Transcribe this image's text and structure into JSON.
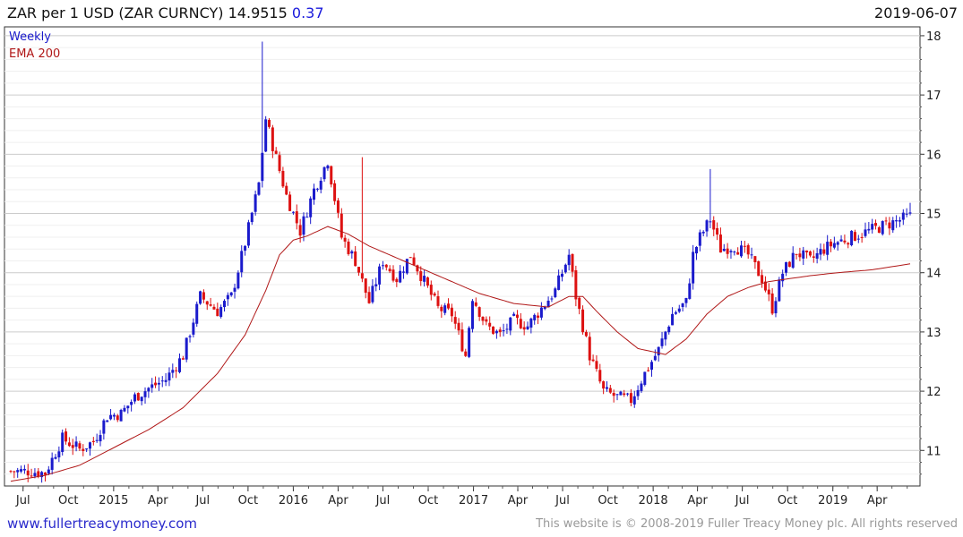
{
  "header": {
    "title": "ZAR per 1 USD (ZAR CURNCY) 14.9515",
    "change": "0.37",
    "date": "2019-06-07"
  },
  "footer": {
    "left": "www.fullertreacymoney.com",
    "right": "This website is © 2008-2019 Fuller Treacy Money plc. All rights reserved"
  },
  "chart_data": {
    "type": "candlestick",
    "frequency": "Weekly",
    "overlay": "EMA 200",
    "legend": [
      "Weekly",
      "EMA 200"
    ],
    "legend_position": "top-left",
    "colors": {
      "up": "#1a1acc",
      "down": "#dd1111",
      "ema": "#b01818",
      "grid": "#d9d9d9"
    },
    "ylim": [
      10.4,
      18.15
    ],
    "y_ticks": [
      11,
      12,
      13,
      14,
      15,
      16,
      17,
      18
    ],
    "x_tick_labels": [
      "Jul",
      "Oct",
      "2015",
      "Apr",
      "Jul",
      "Oct",
      "2016",
      "Apr",
      "Jul",
      "Oct",
      "2017",
      "Apr",
      "Jul",
      "Oct",
      "2018",
      "Apr",
      "Jul",
      "Oct",
      "2019",
      "Apr"
    ],
    "start_week": "2014-06-06",
    "end_week": "2019-06-07",
    "close_points": [
      {
        "w": 0,
        "v": 10.65
      },
      {
        "w": 5,
        "v": 10.65
      },
      {
        "w": 10,
        "v": 10.62
      },
      {
        "w": 15,
        "v": 11.2
      },
      {
        "w": 20,
        "v": 11.02
      },
      {
        "w": 24,
        "v": 11.15
      },
      {
        "w": 28,
        "v": 11.58
      },
      {
        "w": 32,
        "v": 11.62
      },
      {
        "w": 36,
        "v": 11.9
      },
      {
        "w": 40,
        "v": 12.05
      },
      {
        "w": 45,
        "v": 12.2
      },
      {
        "w": 50,
        "v": 12.6
      },
      {
        "w": 55,
        "v": 13.6
      },
      {
        "w": 60,
        "v": 13.35
      },
      {
        "w": 64,
        "v": 13.6
      },
      {
        "w": 68,
        "v": 14.5
      },
      {
        "w": 72,
        "v": 15.5
      },
      {
        "w": 74,
        "v": 16.6
      },
      {
        "w": 76,
        "v": 16.15
      },
      {
        "w": 80,
        "v": 15.3
      },
      {
        "w": 84,
        "v": 14.7
      },
      {
        "w": 88,
        "v": 15.4
      },
      {
        "w": 92,
        "v": 15.9
      },
      {
        "w": 96,
        "v": 14.6
      },
      {
        "w": 100,
        "v": 14.2
      },
      {
        "w": 104,
        "v": 13.5
      },
      {
        "w": 108,
        "v": 14.2
      },
      {
        "w": 112,
        "v": 13.9
      },
      {
        "w": 116,
        "v": 14.3
      },
      {
        "w": 120,
        "v": 13.85
      },
      {
        "w": 124,
        "v": 13.4
      },
      {
        "w": 128,
        "v": 13.3
      },
      {
        "w": 132,
        "v": 12.6
      },
      {
        "w": 134,
        "v": 13.6
      },
      {
        "w": 138,
        "v": 13.1
      },
      {
        "w": 142,
        "v": 12.95
      },
      {
        "w": 146,
        "v": 13.2
      },
      {
        "w": 150,
        "v": 13.1
      },
      {
        "w": 154,
        "v": 13.4
      },
      {
        "w": 158,
        "v": 13.7
      },
      {
        "w": 162,
        "v": 14.3
      },
      {
        "w": 164,
        "v": 13.6
      },
      {
        "w": 168,
        "v": 12.6
      },
      {
        "w": 172,
        "v": 12.0
      },
      {
        "w": 176,
        "v": 11.9
      },
      {
        "w": 180,
        "v": 11.85
      },
      {
        "w": 184,
        "v": 12.3
      },
      {
        "w": 188,
        "v": 12.7
      },
      {
        "w": 192,
        "v": 13.3
      },
      {
        "w": 196,
        "v": 13.5
      },
      {
        "w": 198,
        "v": 14.3
      },
      {
        "w": 200,
        "v": 14.6
      },
      {
        "w": 203,
        "v": 14.9
      },
      {
        "w": 206,
        "v": 14.4
      },
      {
        "w": 210,
        "v": 14.45
      },
      {
        "w": 214,
        "v": 14.3
      },
      {
        "w": 218,
        "v": 13.9
      },
      {
        "w": 221,
        "v": 13.4
      },
      {
        "w": 224,
        "v": 14.0
      },
      {
        "w": 228,
        "v": 14.35
      },
      {
        "w": 232,
        "v": 14.2
      },
      {
        "w": 236,
        "v": 14.4
      },
      {
        "w": 239,
        "v": 14.5
      },
      {
        "w": 261,
        "v": 14.9515
      }
    ],
    "ema_points": [
      {
        "w": 0,
        "v": 10.48
      },
      {
        "w": 10,
        "v": 10.58
      },
      {
        "w": 20,
        "v": 10.75
      },
      {
        "w": 30,
        "v": 11.05
      },
      {
        "w": 40,
        "v": 11.35
      },
      {
        "w": 50,
        "v": 11.72
      },
      {
        "w": 60,
        "v": 12.3
      },
      {
        "w": 68,
        "v": 12.95
      },
      {
        "w": 74,
        "v": 13.7
      },
      {
        "w": 78,
        "v": 14.3
      },
      {
        "w": 82,
        "v": 14.55
      },
      {
        "w": 86,
        "v": 14.62
      },
      {
        "w": 92,
        "v": 14.78
      },
      {
        "w": 98,
        "v": 14.65
      },
      {
        "w": 104,
        "v": 14.45
      },
      {
        "w": 112,
        "v": 14.25
      },
      {
        "w": 118,
        "v": 14.1
      },
      {
        "w": 124,
        "v": 13.95
      },
      {
        "w": 130,
        "v": 13.8
      },
      {
        "w": 136,
        "v": 13.65
      },
      {
        "w": 146,
        "v": 13.48
      },
      {
        "w": 156,
        "v": 13.42
      },
      {
        "w": 162,
        "v": 13.6
      },
      {
        "w": 166,
        "v": 13.6
      },
      {
        "w": 170,
        "v": 13.35
      },
      {
        "w": 176,
        "v": 13.0
      },
      {
        "w": 182,
        "v": 12.72
      },
      {
        "w": 190,
        "v": 12.62
      },
      {
        "w": 196,
        "v": 12.88
      },
      {
        "w": 202,
        "v": 13.3
      },
      {
        "w": 208,
        "v": 13.6
      },
      {
        "w": 214,
        "v": 13.75
      },
      {
        "w": 220,
        "v": 13.85
      },
      {
        "w": 226,
        "v": 13.9
      },
      {
        "w": 232,
        "v": 13.95
      },
      {
        "w": 240,
        "v": 14.0
      },
      {
        "w": 250,
        "v": 14.05
      },
      {
        "w": 261,
        "v": 14.15
      }
    ],
    "spikes": [
      {
        "w": 73,
        "high": 17.9
      },
      {
        "w": 102,
        "high": 15.95
      },
      {
        "w": 203,
        "high": 15.75
      },
      {
        "w": 261,
        "high": 15.18
      }
    ]
  }
}
